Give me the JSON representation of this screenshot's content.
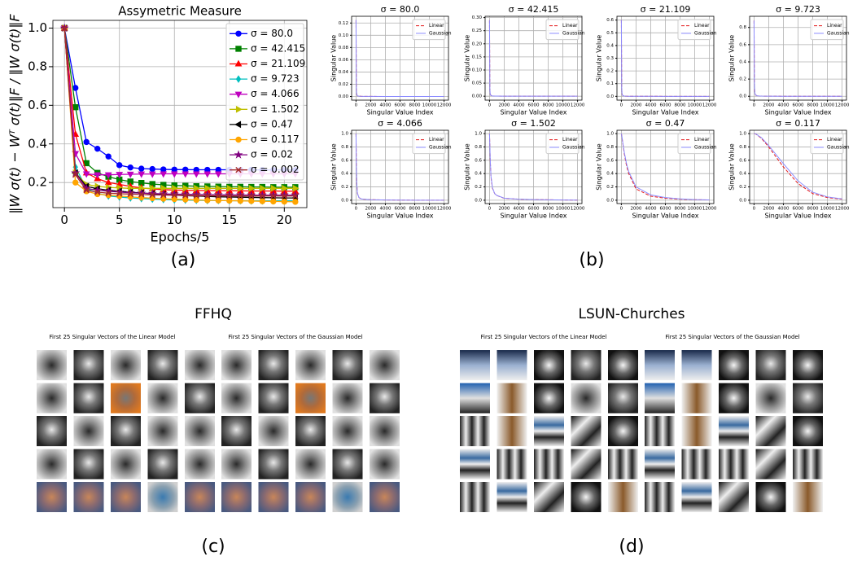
{
  "chart_data": [
    {
      "type": "line",
      "title": "Assymetric Measure",
      "xlabel": "Epochs/5",
      "ylabel": "‖W σ(t) − Wᵀ σ(t)‖F / ‖W σ(t)‖F",
      "x": [
        0,
        1,
        2,
        3,
        4,
        5,
        6,
        7,
        8,
        9,
        10,
        11,
        12,
        13,
        14,
        15,
        16,
        17,
        18,
        19,
        20,
        21
      ],
      "xlim": [
        -1.05,
        22.05
      ],
      "ylim": [
        0.07,
        1.04
      ],
      "xticks": [
        0,
        5,
        10,
        15,
        20
      ],
      "yticks": [
        0.2,
        0.4,
        0.6,
        0.8,
        {
          "value": 1,
          "label": "1.0"
        }
      ],
      "grid": true,
      "legend": "upper right",
      "series": [
        {
          "name": "σ = 80.0",
          "color": "#0000ff",
          "marker": "o",
          "values": [
            1.0,
            0.69,
            0.41,
            0.375,
            0.335,
            0.29,
            0.278,
            0.272,
            0.27,
            0.268,
            0.267,
            0.267,
            0.266,
            0.266,
            0.266,
            0.266,
            0.266,
            0.266,
            0.265,
            0.265,
            0.265,
            0.265
          ]
        },
        {
          "name": "σ = 42.415",
          "color": "#008000",
          "marker": "s",
          "values": [
            1.0,
            0.59,
            0.3,
            0.25,
            0.23,
            0.215,
            0.205,
            0.198,
            0.192,
            0.188,
            0.185,
            0.183,
            0.181,
            0.18,
            0.179,
            0.178,
            0.178,
            0.177,
            0.177,
            0.176,
            0.176,
            0.176
          ]
        },
        {
          "name": "σ = 21.109",
          "color": "#ff0000",
          "marker": "^",
          "values": [
            1.0,
            0.45,
            0.25,
            0.22,
            0.2,
            0.19,
            0.18,
            0.172,
            0.167,
            0.163,
            0.161,
            0.16,
            0.159,
            0.158,
            0.158,
            0.157,
            0.157,
            0.156,
            0.156,
            0.156,
            0.155,
            0.155
          ]
        },
        {
          "name": "σ = 9.723",
          "color": "#00bfbf",
          "marker": "d",
          "values": [
            1.0,
            0.28,
            0.17,
            0.145,
            0.13,
            0.125,
            0.12,
            0.117,
            0.114,
            0.112,
            0.11,
            0.109,
            0.108,
            0.107,
            0.107,
            0.106,
            0.106,
            0.105,
            0.105,
            0.105,
            0.105,
            0.105
          ]
        },
        {
          "name": "σ = 4.066",
          "color": "#bf00bf",
          "marker": "v",
          "values": [
            1.0,
            0.35,
            0.245,
            0.24,
            0.24,
            0.242,
            0.243,
            0.244,
            0.244,
            0.245,
            0.245,
            0.245,
            0.245,
            0.245,
            0.245,
            0.245,
            0.245,
            0.245,
            0.245,
            0.245,
            0.245,
            0.245
          ]
        },
        {
          "name": "σ = 1.502",
          "color": "#bfbf00",
          "marker": ">",
          "values": [
            1.0,
            0.25,
            0.19,
            0.18,
            0.175,
            0.172,
            0.17,
            0.17,
            0.17,
            0.17,
            0.17,
            0.17,
            0.17,
            0.17,
            0.17,
            0.17,
            0.17,
            0.17,
            0.17,
            0.17,
            0.17,
            0.17
          ]
        },
        {
          "name": "σ = 0.47",
          "color": "#000000",
          "marker": "<",
          "values": [
            1.0,
            0.25,
            0.18,
            0.168,
            0.16,
            0.155,
            0.15,
            0.146,
            0.142,
            0.138,
            0.135,
            0.132,
            0.13,
            0.128,
            0.126,
            0.125,
            0.124,
            0.123,
            0.122,
            0.121,
            0.12,
            0.12
          ]
        },
        {
          "name": "σ = 0.117",
          "color": "#ffa500",
          "marker": "o",
          "values": [
            1.0,
            0.2,
            0.155,
            0.14,
            0.135,
            0.13,
            0.126,
            0.122,
            0.119,
            0.116,
            0.114,
            0.112,
            0.11,
            0.108,
            0.107,
            0.106,
            0.105,
            0.104,
            0.103,
            0.102,
            0.101,
            0.1
          ]
        },
        {
          "name": "σ = 0.02",
          "color": "#800080",
          "marker": "*",
          "values": [
            1.0,
            0.25,
            0.17,
            0.16,
            0.155,
            0.15,
            0.147,
            0.145,
            0.143,
            0.141,
            0.14,
            0.139,
            0.138,
            0.137,
            0.137,
            0.136,
            0.136,
            0.135,
            0.135,
            0.135,
            0.135,
            0.135
          ]
        },
        {
          "name": "σ = 0.002",
          "color": "#a52a2a",
          "marker": "x",
          "values": [
            1.0,
            0.24,
            0.16,
            0.15,
            0.145,
            0.142,
            0.14,
            0.138,
            0.136,
            0.135,
            0.134,
            0.133,
            0.132,
            0.131,
            0.131,
            0.13,
            0.13,
            0.13,
            0.13,
            0.13,
            0.13,
            0.13
          ]
        }
      ]
    },
    {
      "type": "line",
      "title": "σ = 80.0",
      "xlabel": "Singular Value Index",
      "ylabel": "Singular Value",
      "grid": true,
      "legend": "upper right",
      "x": [
        0,
        50,
        100,
        200,
        400,
        700,
        1000,
        2000,
        4000,
        6000,
        8000,
        10000,
        12000
      ],
      "xlim": [
        -600,
        12600
      ],
      "ylim": [
        -0.006,
        0.131
      ],
      "xticks": [
        0,
        2000,
        4000,
        6000,
        8000,
        10000,
        12000
      ],
      "yticks": [
        {
          "value": 0,
          "label": "0.00"
        },
        0.02,
        0.04,
        0.06,
        0.08,
        {
          "value": 0.1,
          "label": "0.10"
        },
        0.12
      ],
      "series": [
        {
          "name": "Linear",
          "color": "#e41a1c",
          "linestyle": "dashed",
          "values": [
            0.125,
            0.01,
            0.003,
            0.001,
            0.0005,
            0.0003,
            0.0002,
            0.0001,
            0,
            0,
            0,
            0,
            0
          ]
        },
        {
          "name": "Gaussian",
          "color": "#8c8cff",
          "linestyle": "solid",
          "values": [
            0.125,
            0.011,
            0.003,
            0.001,
            0.0005,
            0.0003,
            0.0002,
            0.0001,
            0,
            0,
            0,
            0,
            0
          ]
        }
      ]
    },
    {
      "type": "line",
      "title": "σ = 42.415",
      "xlabel": "Singular Value Index",
      "ylabel": "Singular Value",
      "grid": true,
      "legend": "upper right",
      "x": [
        0,
        50,
        100,
        200,
        400,
        700,
        1000,
        2000,
        4000,
        6000,
        8000,
        10000,
        12000
      ],
      "xlim": [
        -600,
        12600
      ],
      "ylim": [
        -0.015,
        0.305
      ],
      "xticks": [
        0,
        2000,
        4000,
        6000,
        8000,
        10000,
        12000
      ],
      "yticks": [
        {
          "value": 0,
          "label": "0.00"
        },
        0.05,
        {
          "value": 0.1,
          "label": "0.10"
        },
        0.15,
        {
          "value": 0.2,
          "label": "0.20"
        },
        0.25,
        {
          "value": 0.3,
          "label": "0.30"
        }
      ],
      "series": [
        {
          "name": "Linear",
          "color": "#e41a1c",
          "linestyle": "dashed",
          "values": [
            0.29,
            0.025,
            0.007,
            0.003,
            0.001,
            0.0006,
            0.0004,
            0.0002,
            0,
            0,
            0,
            0,
            0
          ]
        },
        {
          "name": "Gaussian",
          "color": "#8c8cff",
          "linestyle": "solid",
          "values": [
            0.29,
            0.026,
            0.007,
            0.003,
            0.001,
            0.0006,
            0.0004,
            0.0002,
            0,
            0,
            0,
            0,
            0
          ]
        }
      ]
    },
    {
      "type": "line",
      "title": "σ = 21.109",
      "xlabel": "Singular Value Index",
      "ylabel": "Singular Value",
      "grid": true,
      "legend": "upper right",
      "x": [
        0,
        50,
        100,
        200,
        400,
        700,
        1000,
        2000,
        4000,
        6000,
        8000,
        10000,
        12000
      ],
      "xlim": [
        -600,
        12600
      ],
      "ylim": [
        -0.03,
        0.63
      ],
      "xticks": [
        0,
        2000,
        4000,
        6000,
        8000,
        10000,
        12000
      ],
      "yticks": [
        {
          "value": 0,
          "label": "0.0"
        },
        0.1,
        0.2,
        0.3,
        0.4,
        0.5,
        0.6
      ],
      "series": [
        {
          "name": "Linear",
          "color": "#e41a1c",
          "linestyle": "dashed",
          "values": [
            0.6,
            0.06,
            0.015,
            0.006,
            0.002,
            0.001,
            0.0008,
            0.0004,
            0.0001,
            0,
            0,
            0,
            0
          ]
        },
        {
          "name": "Gaussian",
          "color": "#8c8cff",
          "linestyle": "solid",
          "values": [
            0.6,
            0.062,
            0.016,
            0.006,
            0.002,
            0.001,
            0.0008,
            0.0004,
            0.0001,
            0,
            0,
            0,
            0
          ]
        }
      ]
    },
    {
      "type": "line",
      "title": "σ = 9.723",
      "xlabel": "Singular Value Index",
      "ylabel": "Singular Value",
      "grid": true,
      "legend": "upper right",
      "x": [
        0,
        50,
        100,
        200,
        400,
        700,
        1000,
        2000,
        4000,
        6000,
        8000,
        10000,
        12000
      ],
      "xlim": [
        -600,
        12600
      ],
      "ylim": [
        -0.045,
        0.93
      ],
      "xticks": [
        0,
        2000,
        4000,
        6000,
        8000,
        10000,
        12000
      ],
      "yticks": [
        {
          "value": 0,
          "label": "0.0"
        },
        0.2,
        0.4,
        0.6,
        0.8
      ],
      "series": [
        {
          "name": "Linear",
          "color": "#e41a1c",
          "linestyle": "dashed",
          "values": [
            0.88,
            0.15,
            0.04,
            0.015,
            0.006,
            0.003,
            0.002,
            0.001,
            0.0004,
            0.0002,
            0,
            0,
            0
          ]
        },
        {
          "name": "Gaussian",
          "color": "#8c8cff",
          "linestyle": "solid",
          "values": [
            0.88,
            0.155,
            0.042,
            0.016,
            0.006,
            0.003,
            0.002,
            0.001,
            0.0004,
            0.0002,
            0,
            0,
            0
          ]
        }
      ]
    },
    {
      "type": "line",
      "title": "σ = 4.066",
      "xlabel": "Singular Value Index",
      "ylabel": "Singular Value",
      "grid": true,
      "legend": "upper right",
      "x": [
        0,
        50,
        100,
        200,
        400,
        700,
        1000,
        2000,
        4000,
        6000,
        8000,
        10000,
        12000
      ],
      "xlim": [
        -600,
        12600
      ],
      "ylim": [
        -0.05,
        1.05
      ],
      "xticks": [
        0,
        2000,
        4000,
        6000,
        8000,
        10000,
        12000
      ],
      "yticks": [
        {
          "value": 0,
          "label": "0.0"
        },
        0.2,
        0.4,
        0.6,
        0.8,
        {
          "value": 1,
          "label": "1.0"
        }
      ],
      "series": [
        {
          "name": "Linear",
          "color": "#e41a1c",
          "linestyle": "dashed",
          "values": [
            1.0,
            0.5,
            0.25,
            0.1,
            0.04,
            0.02,
            0.015,
            0.008,
            0.004,
            0.002,
            0.001,
            0.0005,
            0
          ]
        },
        {
          "name": "Gaussian",
          "color": "#8c8cff",
          "linestyle": "solid",
          "values": [
            1.0,
            0.51,
            0.26,
            0.1,
            0.04,
            0.02,
            0.015,
            0.008,
            0.004,
            0.002,
            0.001,
            0.0005,
            0
          ]
        }
      ]
    },
    {
      "type": "line",
      "title": "σ = 1.502",
      "xlabel": "Singular Value Index",
      "ylabel": "Singular Value",
      "grid": true,
      "legend": "upper right",
      "x": [
        0,
        50,
        100,
        200,
        400,
        700,
        1000,
        2000,
        4000,
        6000,
        8000,
        10000,
        12000
      ],
      "xlim": [
        -600,
        12600
      ],
      "ylim": [
        -0.05,
        1.05
      ],
      "xticks": [
        0,
        2000,
        4000,
        6000,
        8000,
        10000,
        12000
      ],
      "yticks": [
        {
          "value": 0,
          "label": "0.0"
        },
        0.2,
        0.4,
        0.6,
        0.8,
        {
          "value": 1,
          "label": "1.0"
        }
      ],
      "series": [
        {
          "name": "Linear",
          "color": "#e41a1c",
          "linestyle": "dashed",
          "values": [
            1.0,
            0.8,
            0.6,
            0.35,
            0.18,
            0.1,
            0.07,
            0.03,
            0.015,
            0.01,
            0.007,
            0.004,
            0.002
          ]
        },
        {
          "name": "Gaussian",
          "color": "#8c8cff",
          "linestyle": "solid",
          "values": [
            1.0,
            0.81,
            0.61,
            0.36,
            0.19,
            0.1,
            0.072,
            0.031,
            0.016,
            0.01,
            0.007,
            0.004,
            0.002
          ]
        }
      ]
    },
    {
      "type": "line",
      "title": "σ = 0.47",
      "xlabel": "Singular Value Index",
      "ylabel": "Singular Value",
      "grid": true,
      "legend": "upper right",
      "x": [
        0,
        50,
        100,
        200,
        400,
        700,
        1000,
        2000,
        4000,
        6000,
        8000,
        10000,
        12000
      ],
      "xlim": [
        -600,
        12600
      ],
      "ylim": [
        -0.05,
        1.05
      ],
      "xticks": [
        0,
        2000,
        4000,
        6000,
        8000,
        10000,
        12000
      ],
      "yticks": [
        {
          "value": 0,
          "label": "0.0"
        },
        0.2,
        0.4,
        0.6,
        0.8,
        {
          "value": 1,
          "label": "1.0"
        }
      ],
      "series": [
        {
          "name": "Linear",
          "color": "#e41a1c",
          "linestyle": "dashed",
          "values": [
            1.0,
            0.97,
            0.93,
            0.85,
            0.7,
            0.52,
            0.4,
            0.17,
            0.06,
            0.03,
            0.015,
            0.008,
            0.004
          ]
        },
        {
          "name": "Gaussian",
          "color": "#8c8cff",
          "linestyle": "solid",
          "values": [
            1.0,
            0.97,
            0.94,
            0.86,
            0.72,
            0.55,
            0.43,
            0.2,
            0.08,
            0.04,
            0.02,
            0.01,
            0.005
          ]
        }
      ]
    },
    {
      "type": "line",
      "title": "σ = 0.117",
      "xlabel": "Singular Value Index",
      "ylabel": "Singular Value",
      "grid": true,
      "legend": "upper right",
      "x": [
        0,
        50,
        100,
        200,
        400,
        700,
        1000,
        2000,
        4000,
        6000,
        8000,
        10000,
        12000
      ],
      "xlim": [
        -600,
        12600
      ],
      "ylim": [
        -0.05,
        1.05
      ],
      "xticks": [
        0,
        2000,
        4000,
        6000,
        8000,
        10000,
        12000
      ],
      "yticks": [
        {
          "value": 0,
          "label": "0.0"
        },
        0.2,
        0.4,
        0.6,
        0.8,
        {
          "value": 1,
          "label": "1.0"
        }
      ],
      "series": [
        {
          "name": "Linear",
          "color": "#e41a1c",
          "linestyle": "dashed",
          "values": [
            1.0,
            1.0,
            0.999,
            0.995,
            0.98,
            0.955,
            0.93,
            0.8,
            0.5,
            0.25,
            0.1,
            0.04,
            0.015
          ]
        },
        {
          "name": "Gaussian",
          "color": "#8c8cff",
          "linestyle": "solid",
          "values": [
            1.0,
            1.0,
            0.999,
            0.996,
            0.985,
            0.96,
            0.94,
            0.82,
            0.55,
            0.29,
            0.12,
            0.05,
            0.02
          ]
        }
      ]
    }
  ],
  "panel_labels": [
    "(a)",
    "(b)",
    "(c)",
    "(d)"
  ],
  "image_panels": [
    {
      "title": "FFHQ",
      "grids": [
        "First 25 Singular Vectors of the Linear Model",
        "First 25 Singular Vectors of the Gaussian Model"
      ]
    },
    {
      "title": "LSUN-Churches",
      "grids": [
        "First 25 Singular Vectors of the Linear Model",
        "First 25 Singular Vectors of the Gaussian Model"
      ]
    }
  ]
}
